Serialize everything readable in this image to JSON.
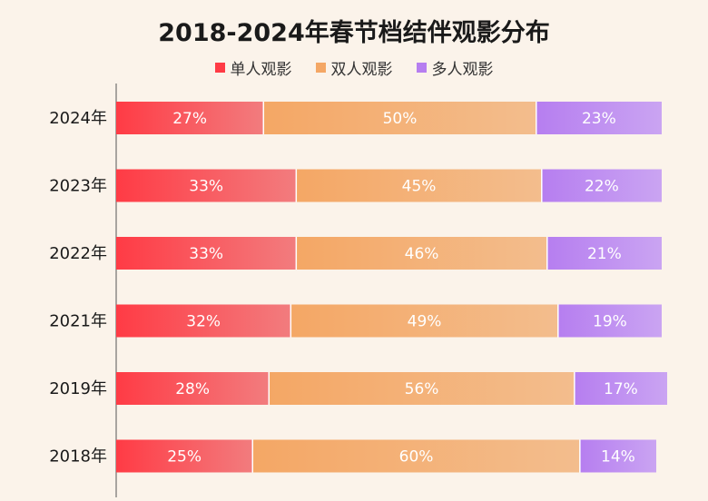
{
  "colors": {
    "single_start": "#ff3b45",
    "single_end": "#f27c7e",
    "double_start": "#f4a765",
    "double_end": "#f3bd8d",
    "multi_start": "#b67ef0",
    "multi_end": "#caa4f2",
    "background": "#fbf3ea"
  },
  "chart_data": {
    "type": "bar",
    "orientation": "horizontal",
    "stacked": true,
    "title": "2018-2024年春节档结伴观影分布",
    "categories": [
      "2024年",
      "2023年",
      "2022年",
      "2021年",
      "2019年",
      "2018年"
    ],
    "series": [
      {
        "name": "单人观影",
        "values": [
          27,
          33,
          33,
          32,
          28,
          25
        ],
        "labels": [
          "27%",
          "33%",
          "33%",
          "32%",
          "28%",
          "25%"
        ]
      },
      {
        "name": "双人观影",
        "values": [
          50,
          45,
          46,
          49,
          56,
          60
        ],
        "labels": [
          "50%",
          "45%",
          "46%",
          "49%",
          "56%",
          "60%"
        ]
      },
      {
        "name": "多人观影",
        "values": [
          23,
          22,
          21,
          19,
          17,
          14
        ],
        "labels": [
          "23%",
          "22%",
          "21%",
          "19%",
          "17%",
          "14%"
        ]
      }
    ],
    "xlim": [
      0,
      100
    ],
    "legend_position": "top-center",
    "grid": false
  }
}
